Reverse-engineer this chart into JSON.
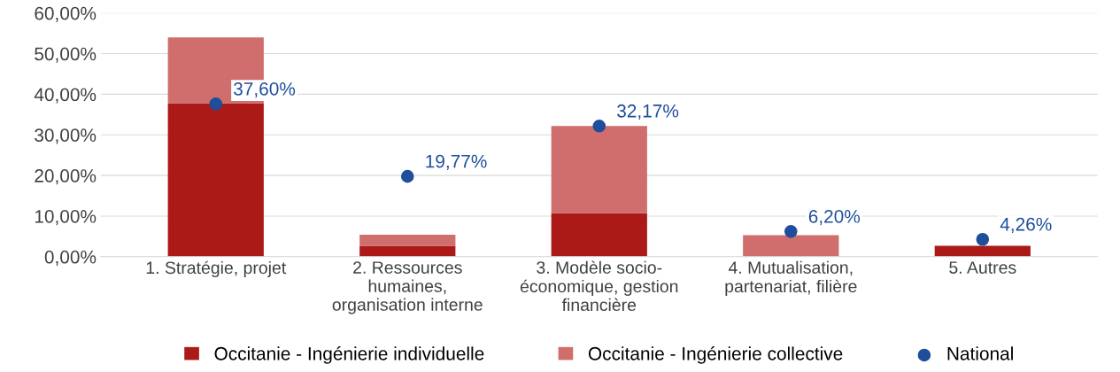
{
  "chart_data": {
    "type": "bar",
    "stacked": true,
    "categories": [
      "1. Stratégie, projet",
      "2. Ressources\nhumaines,\norganisation interne",
      "3. Modèle socio-\néconomique, gestion\nfinancière",
      "4. Mutualisation,\npartenariat, filière",
      "5. Autres"
    ],
    "series": [
      {
        "name": "Occitanie - Ingénierie individuelle",
        "color": "#ab1a16",
        "values": [
          37.8,
          2.7,
          10.7,
          0,
          2.7
        ]
      },
      {
        "name": "Occitanie - Ingénierie collective",
        "color": "#cf6e6c",
        "values": [
          16.2,
          2.7,
          21.5,
          5.3,
          0
        ]
      },
      {
        "name": "National",
        "type": "scatter",
        "color": "#1f4e9c",
        "values": [
          37.6,
          19.77,
          32.17,
          6.2,
          4.26
        ],
        "value_labels": [
          "37,60%",
          "19,77%",
          "32,17%",
          "6,20%",
          "4,26%"
        ]
      }
    ],
    "ylim": [
      0,
      60
    ],
    "yticks": [
      {
        "value": 0,
        "label": "0,00%"
      },
      {
        "value": 10,
        "label": "10,00%"
      },
      {
        "value": 20,
        "label": "20,00%"
      },
      {
        "value": 30,
        "label": "30,00%"
      },
      {
        "value": 40,
        "label": "40,00%"
      },
      {
        "value": 50,
        "label": "50,00%"
      },
      {
        "value": 60,
        "label": "60,00%"
      }
    ],
    "grid": "y",
    "legend": "bottom",
    "marker": "circle"
  }
}
